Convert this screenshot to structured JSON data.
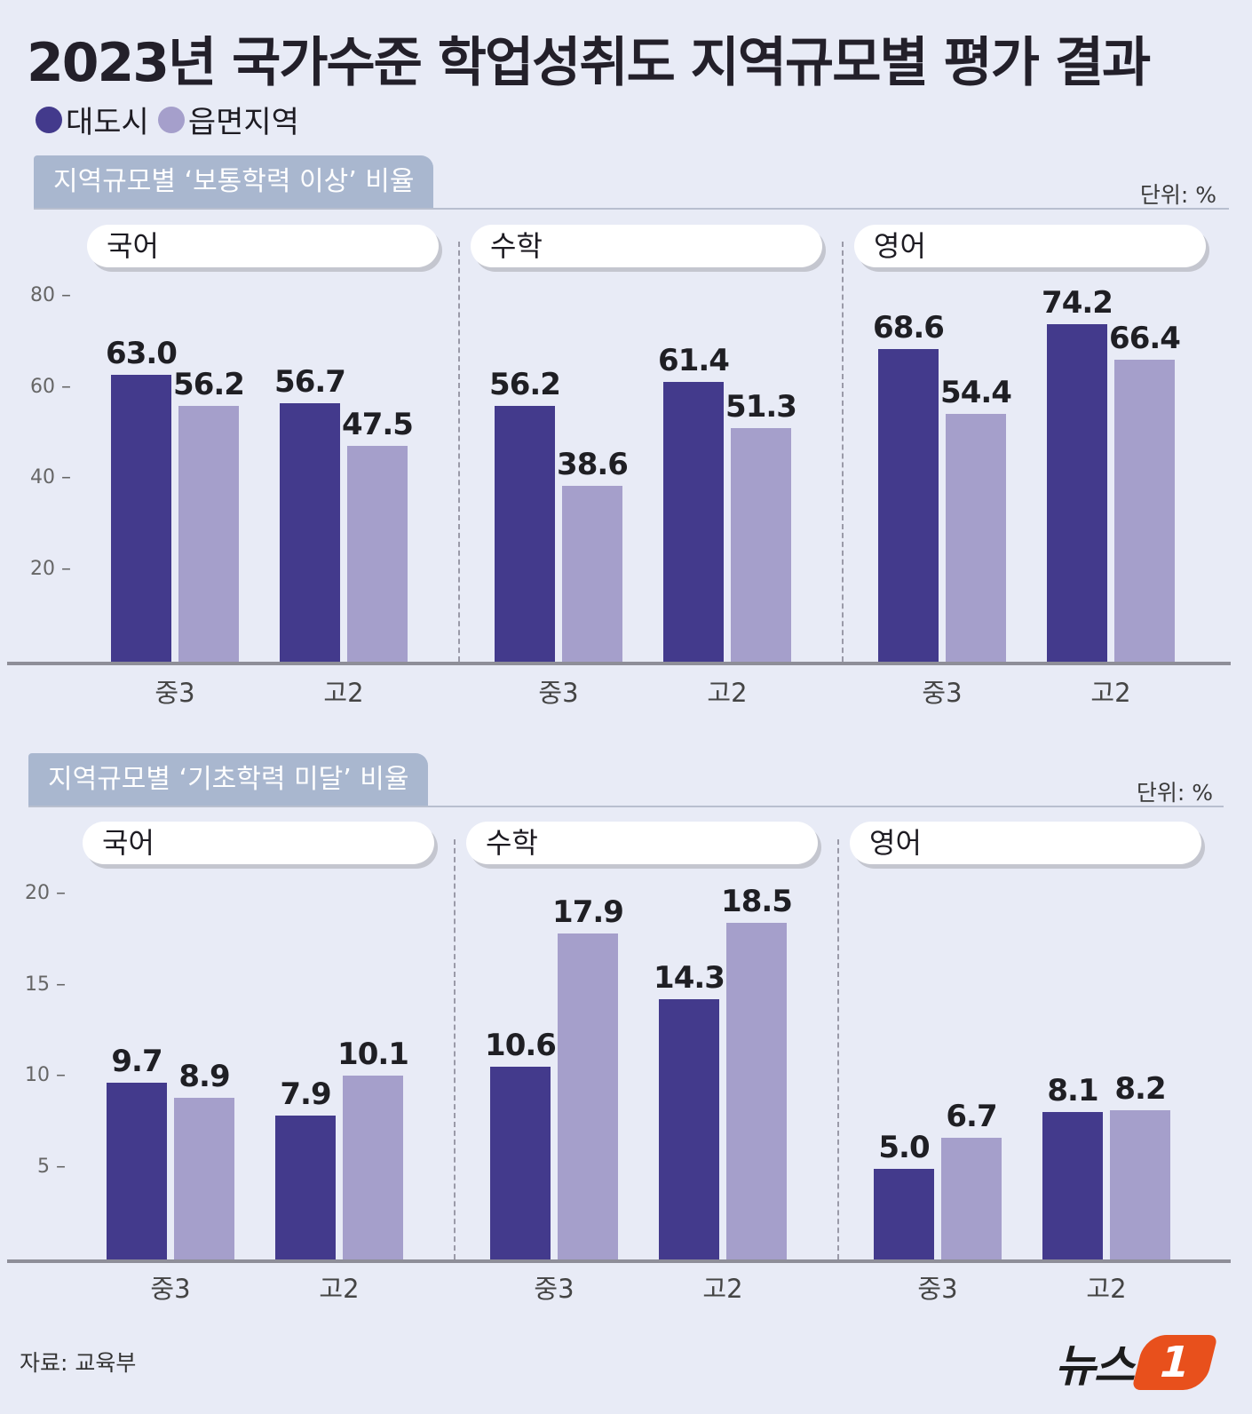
{
  "title": "2023년 국가수준 학업성취도 지역규모별 평가 결과",
  "legend": [
    {
      "label": "대도시",
      "color": "#433a8c"
    },
    {
      "label": "읍면지역",
      "color": "#a59fcb"
    }
  ],
  "colors": {
    "big_city": "#433a8c",
    "rural": "#a59fcb"
  },
  "source": "자료: 교육부",
  "logo": {
    "text": "뉴스",
    "mark": "1"
  },
  "chart_data": [
    {
      "type": "bar",
      "title": "지역규모별 ‘보통학력 이상’ 비율",
      "unit": "단위: %",
      "ylim": [
        0,
        80
      ],
      "yticks": [
        80,
        60,
        40,
        20
      ],
      "panels": [
        {
          "subject": "국어",
          "categories": [
            "중3",
            "고2"
          ],
          "series": [
            {
              "name": "대도시",
              "values": [
                63.0,
                56.7
              ]
            },
            {
              "name": "읍면지역",
              "values": [
                56.2,
                47.5
              ]
            }
          ]
        },
        {
          "subject": "수학",
          "categories": [
            "중3",
            "고2"
          ],
          "series": [
            {
              "name": "대도시",
              "values": [
                56.2,
                61.4
              ]
            },
            {
              "name": "읍면지역",
              "values": [
                38.6,
                51.3
              ]
            }
          ]
        },
        {
          "subject": "영어",
          "categories": [
            "중3",
            "고2"
          ],
          "series": [
            {
              "name": "대도시",
              "values": [
                68.6,
                74.2
              ]
            },
            {
              "name": "읍면지역",
              "values": [
                54.4,
                66.4
              ]
            }
          ]
        }
      ]
    },
    {
      "type": "bar",
      "title": "지역규모별 ‘기초학력 미달’ 비율",
      "unit": "단위: %",
      "ylim": [
        0,
        20
      ],
      "yticks": [
        20,
        15,
        10,
        5
      ],
      "panels": [
        {
          "subject": "국어",
          "categories": [
            "중3",
            "고2"
          ],
          "series": [
            {
              "name": "대도시",
              "values": [
                9.7,
                7.9
              ]
            },
            {
              "name": "읍면지역",
              "values": [
                8.9,
                10.1
              ]
            }
          ]
        },
        {
          "subject": "수학",
          "categories": [
            "중3",
            "고2"
          ],
          "series": [
            {
              "name": "대도시",
              "values": [
                10.6,
                14.3
              ]
            },
            {
              "name": "읍면지역",
              "values": [
                17.9,
                18.5
              ]
            }
          ]
        },
        {
          "subject": "영어",
          "categories": [
            "중3",
            "고2"
          ],
          "series": [
            {
              "name": "대도시",
              "values": [
                5.0,
                8.1
              ]
            },
            {
              "name": "읍면지역",
              "values": [
                6.7,
                8.2
              ]
            }
          ]
        }
      ]
    }
  ]
}
